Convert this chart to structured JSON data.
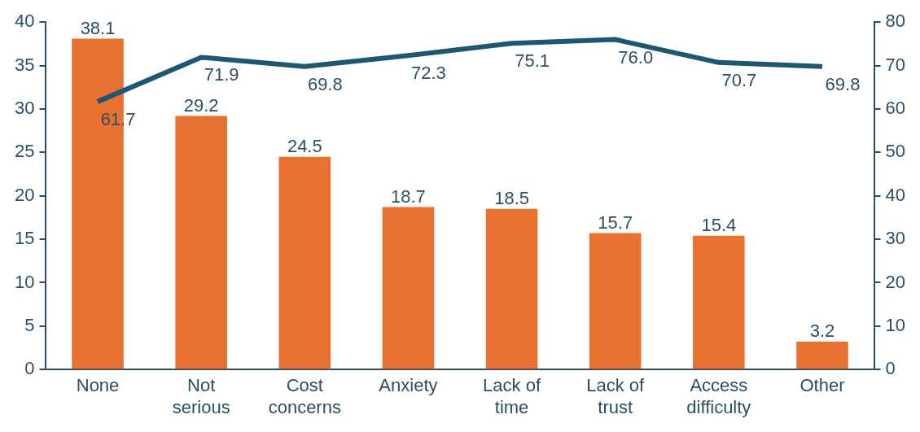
{
  "chart_data": {
    "type": "bar",
    "categories": [
      "None",
      "Not serious",
      "Cost concerns",
      "Anxiety",
      "Lack of time",
      "Lack of trust",
      "Access difficulty",
      "Other"
    ],
    "series": [
      {
        "color": "#e87131",
        "values": [
          38.1,
          29.2,
          24.5,
          18.7,
          18.5,
          15.7,
          15.4,
          3.2
        ]
      },
      {
        "type": "line",
        "axis": "y2",
        "color": "#1f5673",
        "values": [
          61.7,
          71.9,
          69.8,
          72.3,
          75.1,
          76.0,
          70.7,
          69.8
        ],
        "value_labels": [
          "61.7",
          "71.9",
          "69.8",
          "72.3",
          "75.1",
          "76.0",
          "70.7",
          "69.8"
        ]
      }
    ],
    "ylim": [
      0,
      40
    ],
    "yticks": [
      0,
      5,
      10,
      15,
      20,
      25,
      30,
      35,
      40
    ],
    "y2lim": [
      0,
      80
    ],
    "y2ticks": [
      0,
      10,
      20,
      30,
      40,
      50,
      60,
      70,
      80
    ],
    "data_labels": true,
    "grid": false,
    "legend": false,
    "marker": "none"
  }
}
